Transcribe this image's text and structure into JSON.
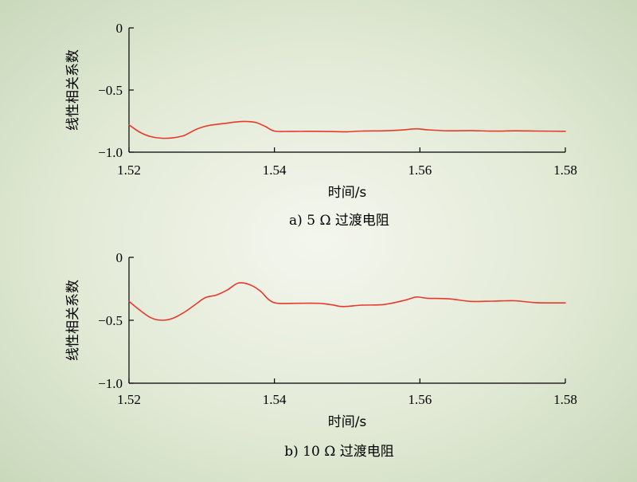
{
  "chart_data": [
    {
      "type": "line",
      "caption": "a) 5 Ω 过渡电阻",
      "xlabel": "时间/s",
      "ylabel": "线性相关系数",
      "xlim": [
        1.52,
        1.58
      ],
      "ylim": [
        -1.0,
        0
      ],
      "x_ticks": [
        1.52,
        1.54,
        1.56,
        1.58
      ],
      "x_tick_labels": [
        "1.52",
        "1.54",
        "1.56",
        "1.58"
      ],
      "y_ticks": [
        0,
        -0.5,
        -1.0
      ],
      "y_tick_labels": [
        "0",
        "−0.5",
        "−1.0"
      ],
      "series": [
        {
          "color": "#e8392a",
          "x": [
            1.52,
            1.5215,
            1.523,
            1.5245,
            1.526,
            1.5275,
            1.5283,
            1.5295,
            1.531,
            1.533,
            1.535,
            1.5362,
            1.5375,
            1.5388,
            1.54,
            1.542,
            1.545,
            1.548,
            1.55,
            1.552,
            1.555,
            1.5575,
            1.5595,
            1.561,
            1.564,
            1.567,
            1.57,
            1.573,
            1.576,
            1.58
          ],
          "y": [
            -0.78,
            -0.84,
            -0.875,
            -0.888,
            -0.885,
            -0.868,
            -0.845,
            -0.81,
            -0.785,
            -0.77,
            -0.755,
            -0.753,
            -0.762,
            -0.795,
            -0.83,
            -0.833,
            -0.832,
            -0.834,
            -0.836,
            -0.83,
            -0.828,
            -0.822,
            -0.812,
            -0.82,
            -0.828,
            -0.826,
            -0.831,
            -0.828,
            -0.83,
            -0.832
          ]
        }
      ]
    },
    {
      "type": "line",
      "caption": "b) 10 Ω 过渡电阻",
      "xlabel": "时间/s",
      "ylabel": "线性相关系数",
      "xlim": [
        1.52,
        1.58
      ],
      "ylim": [
        -1.0,
        0
      ],
      "x_ticks": [
        1.52,
        1.54,
        1.56,
        1.58
      ],
      "x_tick_labels": [
        "1.52",
        "1.54",
        "1.56",
        "1.58"
      ],
      "y_ticks": [
        0,
        -0.5,
        -1.0
      ],
      "y_tick_labels": [
        "0",
        "−0.5",
        "−1.0"
      ],
      "series": [
        {
          "color": "#e8392a",
          "x": [
            1.52,
            1.5215,
            1.523,
            1.5245,
            1.526,
            1.5275,
            1.529,
            1.5305,
            1.532,
            1.5335,
            1.535,
            1.5365,
            1.538,
            1.5393,
            1.5405,
            1.543,
            1.546,
            1.548,
            1.549,
            1.55,
            1.552,
            1.555,
            1.558,
            1.5595,
            1.561,
            1.564,
            1.567,
            1.57,
            1.573,
            1.576,
            1.58
          ],
          "y": [
            -0.35,
            -0.42,
            -0.48,
            -0.5,
            -0.485,
            -0.44,
            -0.38,
            -0.32,
            -0.3,
            -0.26,
            -0.205,
            -0.215,
            -0.265,
            -0.34,
            -0.365,
            -0.365,
            -0.365,
            -0.378,
            -0.39,
            -0.39,
            -0.38,
            -0.375,
            -0.34,
            -0.315,
            -0.325,
            -0.33,
            -0.35,
            -0.348,
            -0.345,
            -0.36,
            -0.362
          ]
        }
      ]
    }
  ]
}
